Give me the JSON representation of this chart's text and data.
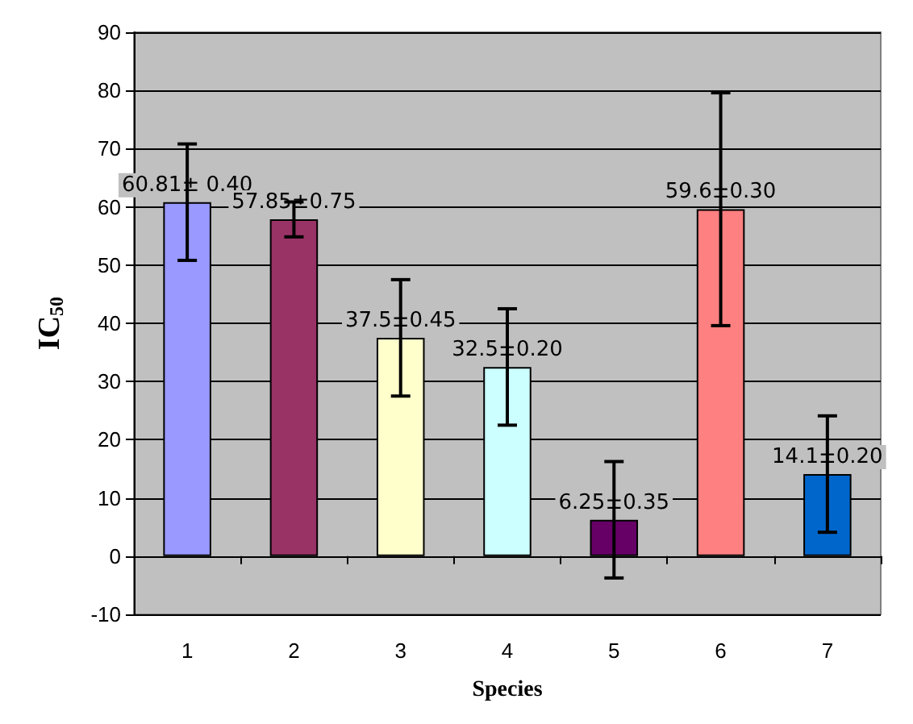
{
  "chart_data": {
    "type": "bar",
    "xlabel": "Species",
    "ylabel": "IC$_{50}$",
    "categories": [
      "1",
      "2",
      "3",
      "4",
      "5",
      "6",
      "7"
    ],
    "values": [
      60.81,
      57.85,
      37.5,
      32.5,
      6.25,
      59.6,
      14.1
    ],
    "colors": [
      "#9999ff",
      "#993366",
      "#ffffcc",
      "#ccffff",
      "#660066",
      "#ff8080",
      "#0066cc"
    ],
    "errors": [
      10,
      3,
      10,
      10,
      10,
      20,
      10
    ],
    "value_labels": [
      "60.81± 0.40",
      "57.85±0.75",
      "37.5±0.45",
      "32.5±0.20",
      "6.25±0.35",
      "59.6±0.30",
      "14.1±0.20"
    ],
    "ylim": [
      -10,
      90
    ],
    "yticks": [
      -10,
      0,
      10,
      20,
      30,
      40,
      50,
      60,
      70,
      80,
      90
    ],
    "grid": "y"
  }
}
